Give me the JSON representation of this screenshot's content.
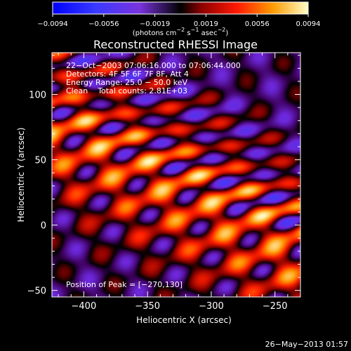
{
  "chart_data": {
    "type": "heatmap",
    "title": "Reconstructed RHESSI Image",
    "xlabel": "Heliocentric X (arcsec)",
    "ylabel": "Heliocentric Y (arcsec)",
    "xlim": [
      -425,
      -230
    ],
    "ylim": [
      -55,
      132
    ],
    "xticks": [
      -400,
      -350,
      -300,
      -250
    ],
    "xtick_labels": [
      "−400",
      "−350",
      "−300",
      "−250"
    ],
    "yticks": [
      -50,
      0,
      50,
      100
    ],
    "ytick_labels": [
      "−50",
      "0",
      "50",
      "100"
    ],
    "info_lines": [
      "22−Oct−2003 07:06:16.000 to 07:06:44.000",
      "Detectors: 4F 5F 6F 7F 8F, Att 4",
      "Energy Range: 25.0 − 50.0 keV",
      "Clean    Total counts: 2.81E+03"
    ],
    "peak_label": "Position of Peak = [−270,130]",
    "peak": [
      -270,
      130
    ],
    "colorbar": {
      "min": -0.0094,
      "max": 0.0094,
      "tick_labels": [
        "−0.0094",
        "−0.0056",
        "−0.0019",
        "0.0019",
        "0.0056",
        "0.0094"
      ],
      "units_text": "(photons cm",
      "units_exp1": "−2",
      "units_mid": " s",
      "units_exp2": "−1",
      "units_mid2": " asec",
      "units_exp3": "−2",
      "units_end": ")"
    }
  },
  "footer": {
    "timestamp": "26−May−2013 01:57"
  },
  "colors": {
    "background": "#000000",
    "foreground": "#ffffff"
  }
}
